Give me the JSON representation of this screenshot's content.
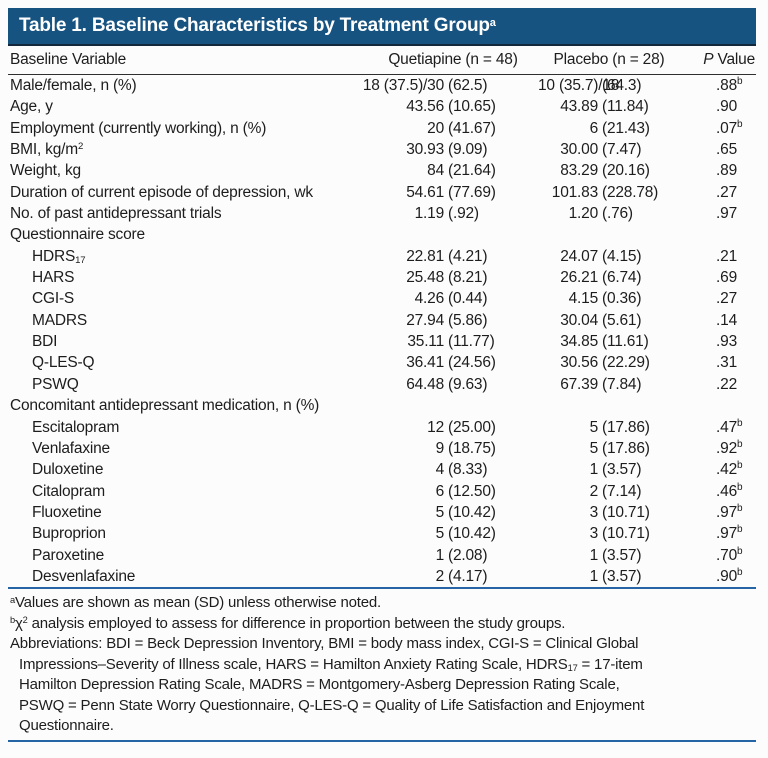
{
  "title": "Table 1. Baseline Characteristics by Treatment Group^{a}",
  "columns": {
    "variable": "Baseline Variable",
    "quetiapine": "Quetiapine (n = 48)",
    "placebo": "Placebo (n = 28)",
    "p": "//P// Value"
  },
  "rows": [
    {
      "label": "Male/female, n (%)",
      "indent": false,
      "section": false,
      "q_num": "18 (37.5)/30",
      "q_paren": "(62.5)",
      "pl_num": "10 (35.7)/18",
      "pl_paren": "(64.3)",
      "p": ".88",
      "p_sup": "b"
    },
    {
      "label": "Age, y",
      "indent": false,
      "section": false,
      "q_num": "43.56",
      "q_paren": "(10.65)",
      "pl_num": "43.89",
      "pl_paren": "(11.84)",
      "p": ".90",
      "p_sup": ""
    },
    {
      "label": "Employment (currently working), n (%)",
      "indent": false,
      "section": false,
      "q_num": "20",
      "q_paren": "(41.67)",
      "pl_num": "6",
      "pl_paren": "(21.43)",
      "p": ".07",
      "p_sup": "b"
    },
    {
      "label": "BMI, kg/m^{2}",
      "indent": false,
      "section": false,
      "q_num": "30.93",
      "q_paren": "(9.09)",
      "pl_num": "30.00",
      "pl_paren": "(7.47)",
      "p": ".65",
      "p_sup": ""
    },
    {
      "label": "Weight, kg",
      "indent": false,
      "section": false,
      "q_num": "84",
      "q_paren": "(21.64)",
      "pl_num": "83.29",
      "pl_paren": "(20.16)",
      "p": ".89",
      "p_sup": ""
    },
    {
      "label": "Duration of current episode of depression, wk",
      "indent": false,
      "section": false,
      "q_num": "54.61",
      "q_paren": "(77.69)",
      "pl_num": "101.83",
      "pl_paren": "(228.78)",
      "p": ".27",
      "p_sup": ""
    },
    {
      "label": "No. of past antidepressant trials",
      "indent": false,
      "section": false,
      "q_num": "1.19",
      "q_paren": "(.92)",
      "pl_num": "1.20",
      "pl_paren": "(.76)",
      "p": ".97",
      "p_sup": ""
    },
    {
      "label": "Questionnaire score",
      "indent": false,
      "section": true,
      "q_num": "",
      "q_paren": "",
      "pl_num": "",
      "pl_paren": "",
      "p": "",
      "p_sup": ""
    },
    {
      "label": "HDRS_{17}",
      "indent": true,
      "section": false,
      "q_num": "22.81",
      "q_paren": "(4.21)",
      "pl_num": "24.07",
      "pl_paren": "(4.15)",
      "p": ".21",
      "p_sup": ""
    },
    {
      "label": "HARS",
      "indent": true,
      "section": false,
      "q_num": "25.48",
      "q_paren": "(8.21)",
      "pl_num": "26.21",
      "pl_paren": "(6.74)",
      "p": ".69",
      "p_sup": ""
    },
    {
      "label": "CGI-S",
      "indent": true,
      "section": false,
      "q_num": "4.26",
      "q_paren": "(0.44)",
      "pl_num": "4.15",
      "pl_paren": "(0.36)",
      "p": ".27",
      "p_sup": ""
    },
    {
      "label": "MADRS",
      "indent": true,
      "section": false,
      "q_num": "27.94",
      "q_paren": "(5.86)",
      "pl_num": "30.04",
      "pl_paren": "(5.61)",
      "p": ".14",
      "p_sup": ""
    },
    {
      "label": "BDI",
      "indent": true,
      "section": false,
      "q_num": "35.11",
      "q_paren": "(11.77)",
      "pl_num": "34.85",
      "pl_paren": "(11.61)",
      "p": ".93",
      "p_sup": ""
    },
    {
      "label": "Q-LES-Q",
      "indent": true,
      "section": false,
      "q_num": "36.41",
      "q_paren": "(24.56)",
      "pl_num": "30.56",
      "pl_paren": "(22.29)",
      "p": ".31",
      "p_sup": ""
    },
    {
      "label": "PSWQ",
      "indent": true,
      "section": false,
      "q_num": "64.48",
      "q_paren": "(9.63)",
      "pl_num": "67.39",
      "pl_paren": "(7.84)",
      "p": ".22",
      "p_sup": ""
    },
    {
      "label": "Concomitant antidepressant medication, n (%)",
      "indent": false,
      "section": true,
      "q_num": "",
      "q_paren": "",
      "pl_num": "",
      "pl_paren": "",
      "p": "",
      "p_sup": ""
    },
    {
      "label": "Escitalopram",
      "indent": true,
      "section": false,
      "q_num": "12",
      "q_paren": "(25.00)",
      "pl_num": "5",
      "pl_paren": "(17.86)",
      "p": ".47",
      "p_sup": "b"
    },
    {
      "label": "Venlafaxine",
      "indent": true,
      "section": false,
      "q_num": "9",
      "q_paren": "(18.75)",
      "pl_num": "5",
      "pl_paren": "(17.86)",
      "p": ".92",
      "p_sup": "b"
    },
    {
      "label": "Duloxetine",
      "indent": true,
      "section": false,
      "q_num": "4",
      "q_paren": "(8.33)",
      "pl_num": "1",
      "pl_paren": "(3.57)",
      "p": ".42",
      "p_sup": "b"
    },
    {
      "label": "Citalopram",
      "indent": true,
      "section": false,
      "q_num": "6",
      "q_paren": "(12.50)",
      "pl_num": "2",
      "pl_paren": "(7.14)",
      "p": ".46",
      "p_sup": "b"
    },
    {
      "label": "Fluoxetine",
      "indent": true,
      "section": false,
      "q_num": "5",
      "q_paren": "(10.42)",
      "pl_num": "3",
      "pl_paren": "(10.71)",
      "p": ".97",
      "p_sup": "b"
    },
    {
      "label": "Buproprion",
      "indent": true,
      "section": false,
      "q_num": "5",
      "q_paren": "(10.42)",
      "pl_num": "3",
      "pl_paren": "(10.71)",
      "p": ".97",
      "p_sup": "b"
    },
    {
      "label": "Paroxetine",
      "indent": true,
      "section": false,
      "q_num": "1",
      "q_paren": "(2.08)",
      "pl_num": "1",
      "pl_paren": "(3.57)",
      "p": ".70",
      "p_sup": "b"
    },
    {
      "label": "Desvenlafaxine",
      "indent": true,
      "section": false,
      "q_num": "2",
      "q_paren": "(4.17)",
      "pl_num": "1",
      "pl_paren": "(3.57)",
      "p": ".90",
      "p_sup": "b"
    }
  ],
  "footnotes": {
    "a": "^{a}Values are shown as mean (SD) unless otherwise noted.",
    "b": "^{b}χ^{2} analysis employed to assess for difference in proportion between the study groups.",
    "abbreviations": [
      "Abbreviations: BDI = Beck Depression Inventory, BMI = body mass index, CGI-S = Clinical Global",
      "Impressions–Severity of Illness scale, HARS = Hamilton Anxiety Rating Scale, HDRS_{17} = 17-item",
      "Hamilton Depression Rating Scale, MADRS = Montgomery-Asberg Depression Rating Scale,",
      "PSWQ = Penn State Worry Questionnaire, Q-LES-Q = Quality of Life Satisfaction and Enjoyment",
      "Questionnaire."
    ]
  },
  "colors": {
    "title_bar_blue": "#175380",
    "title_bar_edge": "#14283c",
    "header_rule_dark": "#2f2f2f",
    "divider_blue": "#2565a5",
    "text": "#1d1d1d",
    "title_text": "#ffffff"
  }
}
